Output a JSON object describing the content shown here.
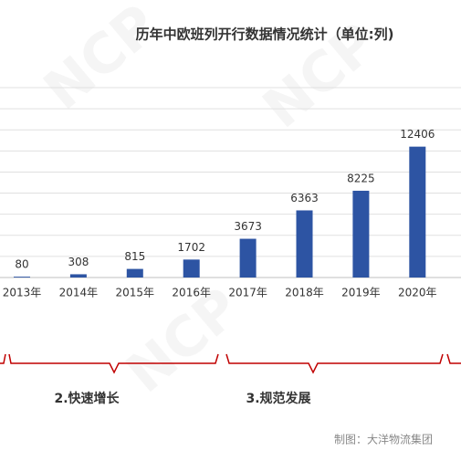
{
  "chart_data": {
    "type": "bar",
    "title": "历年中欧班列开行数据情况统计（单位:列)",
    "categories": [
      "2013年",
      "2014年",
      "2015年",
      "2016年",
      "2017年",
      "2018年",
      "2019年",
      "2020年"
    ],
    "values": [
      80,
      308,
      815,
      1702,
      3673,
      6363,
      8225,
      12406
    ],
    "color": "#2d54a3",
    "ylim": [
      0,
      18000
    ],
    "yticks": [
      0,
      2000,
      4000,
      6000,
      8000,
      10000,
      12000,
      14000,
      16000,
      18000
    ],
    "grid": true,
    "annotations": [
      "2.快速增长",
      "3.规范发展"
    ],
    "source": "制图：大洋物流集团"
  }
}
